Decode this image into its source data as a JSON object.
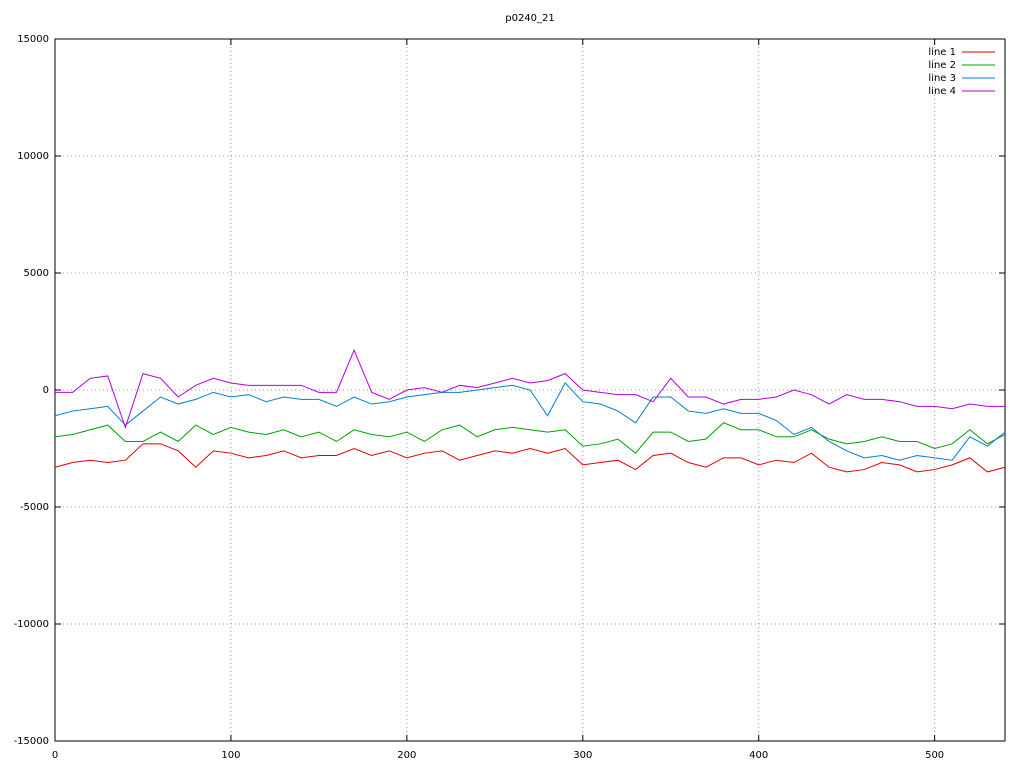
{
  "chart_data": {
    "type": "line",
    "title": "p0240_21",
    "x": [
      0,
      10,
      20,
      30,
      40,
      50,
      60,
      70,
      80,
      90,
      100,
      110,
      120,
      130,
      140,
      150,
      160,
      170,
      180,
      190,
      200,
      210,
      220,
      230,
      240,
      250,
      260,
      270,
      280,
      290,
      300,
      310,
      320,
      330,
      340,
      350,
      360,
      370,
      380,
      390,
      400,
      410,
      420,
      430,
      440,
      450,
      460,
      470,
      480,
      490,
      500,
      510,
      520,
      530,
      540
    ],
    "series": [
      {
        "name": "line 1",
        "color": "#e00000",
        "values": [
          -3300,
          -3100,
          -3000,
          -3100,
          -3000,
          -2300,
          -2300,
          -2600,
          -3300,
          -2600,
          -2700,
          -2900,
          -2800,
          -2600,
          -2900,
          -2800,
          -2800,
          -2500,
          -2800,
          -2600,
          -2900,
          -2700,
          -2600,
          -3000,
          -2800,
          -2600,
          -2700,
          -2500,
          -2700,
          -2500,
          -3200,
          -3100,
          -3000,
          -3400,
          -2800,
          -2700,
          -3100,
          -3300,
          -2900,
          -2900,
          -3200,
          -3000,
          -3100,
          -2700,
          -3300,
          -3500,
          -3400,
          -3100,
          -3200,
          -3500,
          -3400,
          -3200,
          -2900,
          -3500,
          -3300
        ]
      },
      {
        "name": "line 2",
        "color": "#00a000",
        "values": [
          -2000,
          -1900,
          -1700,
          -1500,
          -2200,
          -2200,
          -1800,
          -2200,
          -1500,
          -1900,
          -1600,
          -1800,
          -1900,
          -1700,
          -2000,
          -1800,
          -2200,
          -1700,
          -1900,
          -2000,
          -1800,
          -2200,
          -1700,
          -1500,
          -2000,
          -1700,
          -1600,
          -1700,
          -1800,
          -1700,
          -2400,
          -2300,
          -2100,
          -2700,
          -1800,
          -1800,
          -2200,
          -2100,
          -1400,
          -1700,
          -1700,
          -2000,
          -2000,
          -1700,
          -2100,
          -2300,
          -2200,
          -2000,
          -2200,
          -2200,
          -2500,
          -2300,
          -1700,
          -2300,
          -1900
        ]
      },
      {
        "name": "line 3",
        "color": "#0080d0",
        "values": [
          -1100,
          -900,
          -800,
          -700,
          -1500,
          -900,
          -300,
          -600,
          -400,
          -100,
          -300,
          -200,
          -500,
          -300,
          -400,
          -400,
          -700,
          -300,
          -600,
          -500,
          -300,
          -200,
          -100,
          -100,
          0,
          100,
          200,
          0,
          -1100,
          300,
          -500,
          -600,
          -900,
          -1400,
          -300,
          -300,
          -900,
          -1000,
          -800,
          -1000,
          -1000,
          -1300,
          -1900,
          -1600,
          -2200,
          -2600,
          -2900,
          -2800,
          -3000,
          -2800,
          -2900,
          -3000,
          -2000,
          -2400,
          -1800
        ]
      },
      {
        "name": "line 4",
        "color": "#b000e0",
        "values": [
          -100,
          -100,
          500,
          600,
          -1600,
          700,
          500,
          -300,
          200,
          500,
          300,
          200,
          200,
          200,
          200,
          -100,
          -100,
          1700,
          -100,
          -400,
          0,
          100,
          -100,
          200,
          100,
          300,
          500,
          300,
          400,
          700,
          0,
          -100,
          -200,
          -200,
          -500,
          500,
          -300,
          -300,
          -600,
          -400,
          -400,
          -300,
          0,
          -200,
          -600,
          -200,
          -400,
          -400,
          -500,
          -700,
          -700,
          -800,
          -600,
          -700,
          -700
        ]
      }
    ],
    "xlim": [
      0,
      540
    ],
    "xticks": [
      0,
      100,
      200,
      300,
      400,
      500
    ],
    "ylim": [
      -15000,
      15000
    ],
    "yticks": [
      -15000,
      -10000,
      -5000,
      0,
      5000,
      10000,
      15000
    ],
    "grid": true,
    "legend": "top-right"
  }
}
